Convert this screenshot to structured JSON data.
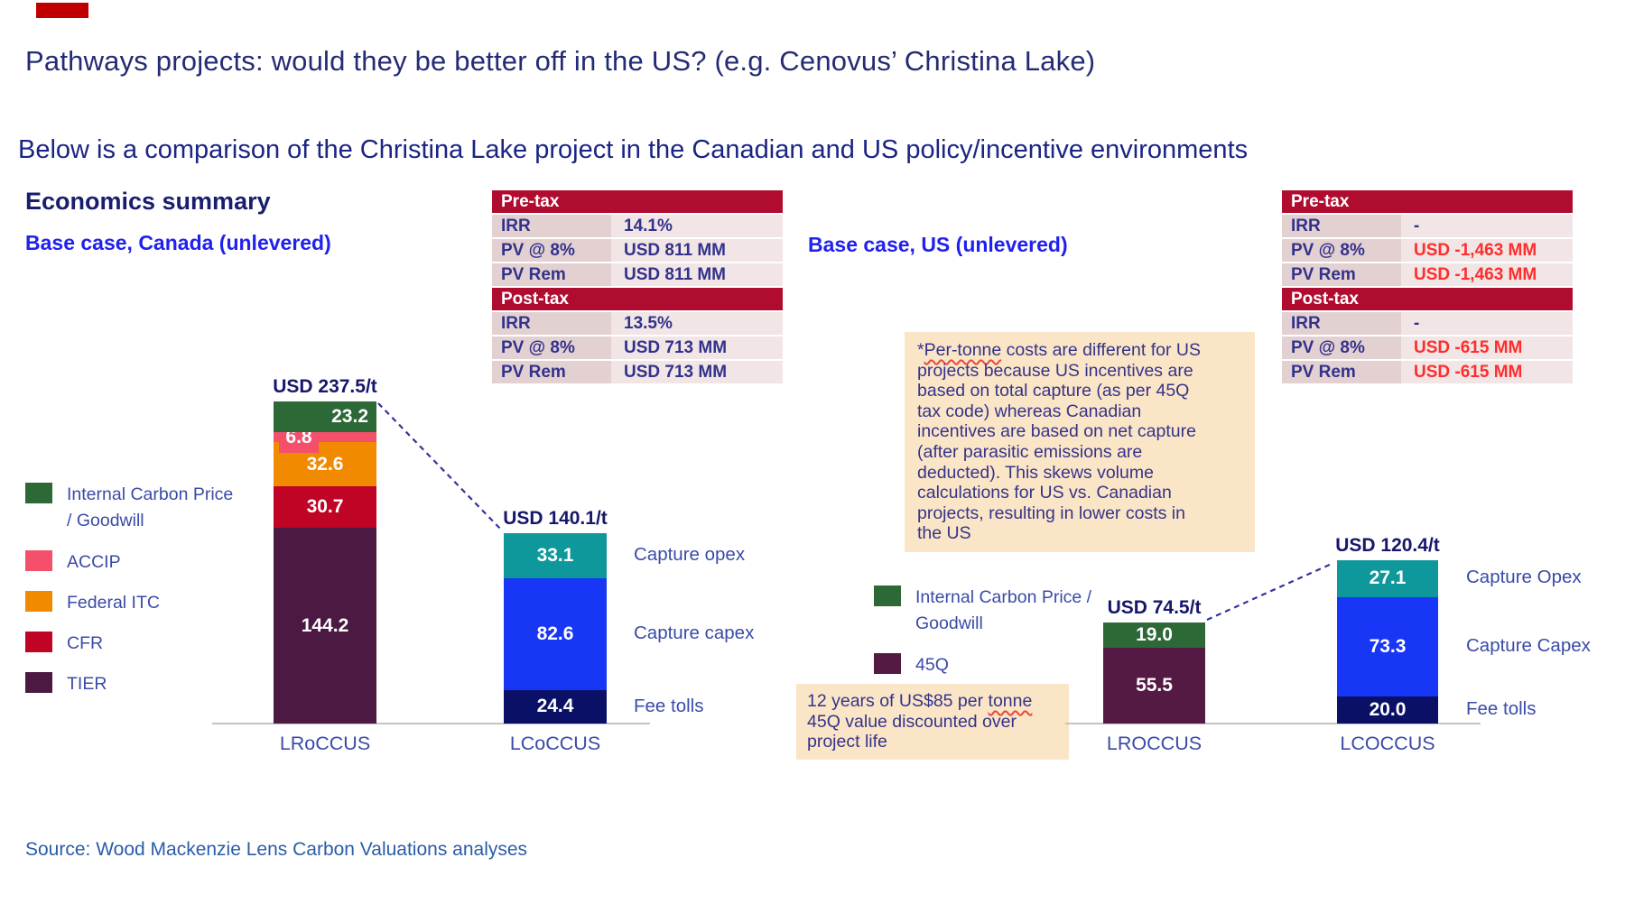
{
  "header": {
    "title": "Pathways projects: would they be better off in the US? (e.g. Cenovus’ Christina Lake)",
    "subtitle": "Below is a comparison of the Christina Lake project in the Canadian and US policy/incentive environments"
  },
  "labels": {
    "economics_summary": "Economics summary"
  },
  "annotations": {
    "us_note": {
      "text": "*Per-tonne costs are different for US\nprojects because US incentives are\nbased on total capture (as per 45Q\ntax code) whereas Canadian\nincentives are based on net capture\n(after parasitic emissions are\ndeducted). This skews volume\ncalculations for US vs. Canadian\nprojects, resulting in lower costs in\nthe US",
      "squiggle_word": "Per-tonne"
    },
    "q45_note": {
      "text": "12 years of US$85 per tonne\n45Q value discounted over\nproject life",
      "squiggle_word": "tonne"
    }
  },
  "source": {
    "text": "Source: Wood Mackenzie Lens Carbon Valuations analyses"
  },
  "colors": {
    "accent_bar": "#C00000",
    "table_header": "#B00C2F",
    "negative_value": "#FF2D2D",
    "green": "#2D6837",
    "accip_pink": "#F4506C",
    "orange": "#F28A00",
    "crimson": "#BF0426",
    "plum": "#4B1942",
    "q45_plum": "#551A44",
    "teal": "#0F989C",
    "bright_blue": "#1736F5",
    "dark_navy": "#0A1066"
  },
  "chart_data": [
    {
      "type": "bar",
      "subtype": "stacked",
      "region": "Canada",
      "case_label": "Base case, Canada (unlevered)",
      "unit": "USD/t",
      "legend": [
        {
          "label": "Internal Carbon Price / Goodwill",
          "color": "#2D6837"
        },
        {
          "label": "ACCIP",
          "color": "#F4506C"
        },
        {
          "label": "Federal ITC",
          "color": "#F28A00"
        },
        {
          "label": "CFR",
          "color": "#BF0426"
        },
        {
          "label": "TIER",
          "color": "#4B1942"
        }
      ],
      "bars": [
        {
          "category": "LRoCCUS",
          "total_label": "USD 237.5/t",
          "segments": [
            {
              "name": "TIER",
              "value": 144.2,
              "color": "#4B1942",
              "label_pos": "center"
            },
            {
              "name": "CFR",
              "value": 30.7,
              "color": "#BF0426",
              "label_pos": "center"
            },
            {
              "name": "Federal ITC",
              "value": 32.6,
              "color": "#F28A00",
              "label_pos": "center"
            },
            {
              "name": "ACCIP",
              "value": 6.8,
              "color": "#F4506C",
              "label_pos": "chip-left"
            },
            {
              "name": "Internal Carbon Price / Goodwill",
              "value": 23.2,
              "color": "#2D6837",
              "label_pos": "right"
            }
          ]
        },
        {
          "category": "LCoCCUS",
          "total_label": "USD 140.1/t",
          "segments": [
            {
              "name": "Fee tolls",
              "value": 24.4,
              "color": "#0A1066",
              "label_pos": "center",
              "side_label": "Fee tolls"
            },
            {
              "name": "Capture capex",
              "value": 82.6,
              "color": "#1736F5",
              "label_pos": "center",
              "side_label": "Capture capex"
            },
            {
              "name": "Capture opex",
              "value": 33.1,
              "color": "#0F989C",
              "label_pos": "center",
              "side_label": "Capture opex"
            }
          ]
        }
      ]
    },
    {
      "type": "bar",
      "subtype": "stacked",
      "region": "US",
      "case_label": "Base case, US (unlevered)",
      "unit": "USD/t",
      "legend": [
        {
          "label": "Internal Carbon Price / Goodwill",
          "color": "#2D6837"
        },
        {
          "label": "45Q",
          "color": "#551A44"
        }
      ],
      "bars": [
        {
          "category": "LROCCUS",
          "total_label": "USD 74.5/t",
          "segments": [
            {
              "name": "45Q",
              "value": 55.5,
              "color": "#551A44",
              "label_pos": "center"
            },
            {
              "name": "Internal Carbon Price / Goodwill",
              "value": 19.0,
              "color": "#2D6837",
              "label_pos": "center"
            }
          ]
        },
        {
          "category": "LCOCCUS",
          "total_label": "USD 120.4/t",
          "segments": [
            {
              "name": "Fee tolls",
              "value": 20.0,
              "color": "#0A1066",
              "label_pos": "center",
              "side_label": "Fee tolls"
            },
            {
              "name": "Capture Capex",
              "value": 73.3,
              "color": "#1736F5",
              "label_pos": "center",
              "side_label": "Capture Capex"
            },
            {
              "name": "Capture Opex",
              "value": 27.1,
              "color": "#0F989C",
              "label_pos": "center",
              "side_label": "Capture Opex"
            }
          ]
        }
      ]
    },
    {
      "type": "table",
      "region": "Canada",
      "sections": [
        {
          "header": "Pre-tax",
          "rows": [
            {
              "label": "IRR",
              "value": "14.1%",
              "negative": false
            },
            {
              "label": "PV @ 8%",
              "value": "USD 811 MM",
              "negative": false
            },
            {
              "label": "PV Rem",
              "value": "USD 811 MM",
              "negative": false
            }
          ]
        },
        {
          "header": "Post-tax",
          "rows": [
            {
              "label": "IRR",
              "value": "13.5%",
              "negative": false
            },
            {
              "label": "PV @ 8%",
              "value": "USD 713 MM",
              "negative": false
            },
            {
              "label": "PV Rem",
              "value": "USD 713 MM",
              "negative": false
            }
          ]
        }
      ]
    },
    {
      "type": "table",
      "region": "US",
      "sections": [
        {
          "header": "Pre-tax",
          "rows": [
            {
              "label": "IRR",
              "value": "-",
              "negative": false
            },
            {
              "label": "PV @ 8%",
              "value": "USD -1,463 MM",
              "negative": true
            },
            {
              "label": "PV Rem",
              "value": "USD -1,463 MM",
              "negative": true
            }
          ]
        },
        {
          "header": "Post-tax",
          "rows": [
            {
              "label": "IRR",
              "value": "-",
              "negative": false
            },
            {
              "label": "PV @ 8%",
              "value": "USD -615 MM",
              "negative": true
            },
            {
              "label": "PV Rem",
              "value": "USD -615 MM",
              "negative": true
            }
          ]
        }
      ]
    }
  ]
}
